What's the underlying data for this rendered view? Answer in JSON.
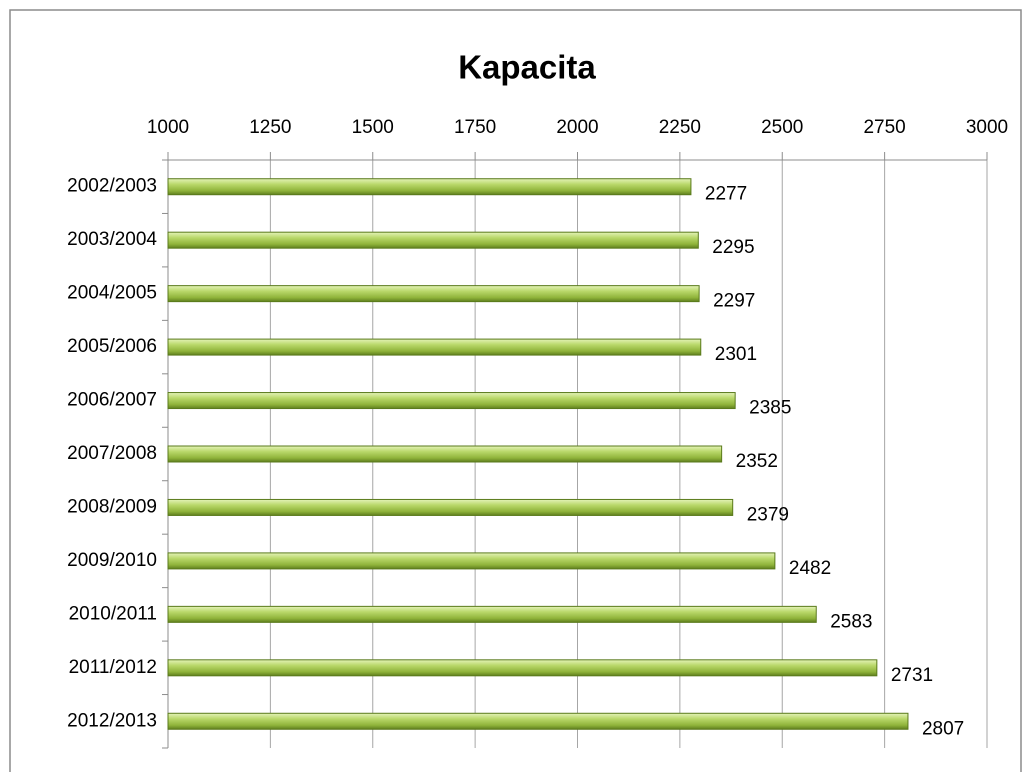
{
  "chart_data": {
    "type": "bar",
    "orientation": "horizontal",
    "title": "Kapacita",
    "categories": [
      "2002/2003",
      "2003/2004",
      "2004/2005",
      "2005/2006",
      "2006/2007",
      "2007/2008",
      "2008/2009",
      "2009/2010",
      "2010/2011",
      "2011/2012",
      "2012/2013"
    ],
    "values": [
      2277,
      2295,
      2297,
      2301,
      2385,
      2352,
      2379,
      2482,
      2583,
      2731,
      2807
    ],
    "color": "#9bc13f",
    "xlim": [
      1000,
      3000
    ],
    "xticks": [
      1000,
      1250,
      1500,
      1750,
      2000,
      2250,
      2500,
      2750,
      3000
    ],
    "grid": true
  }
}
